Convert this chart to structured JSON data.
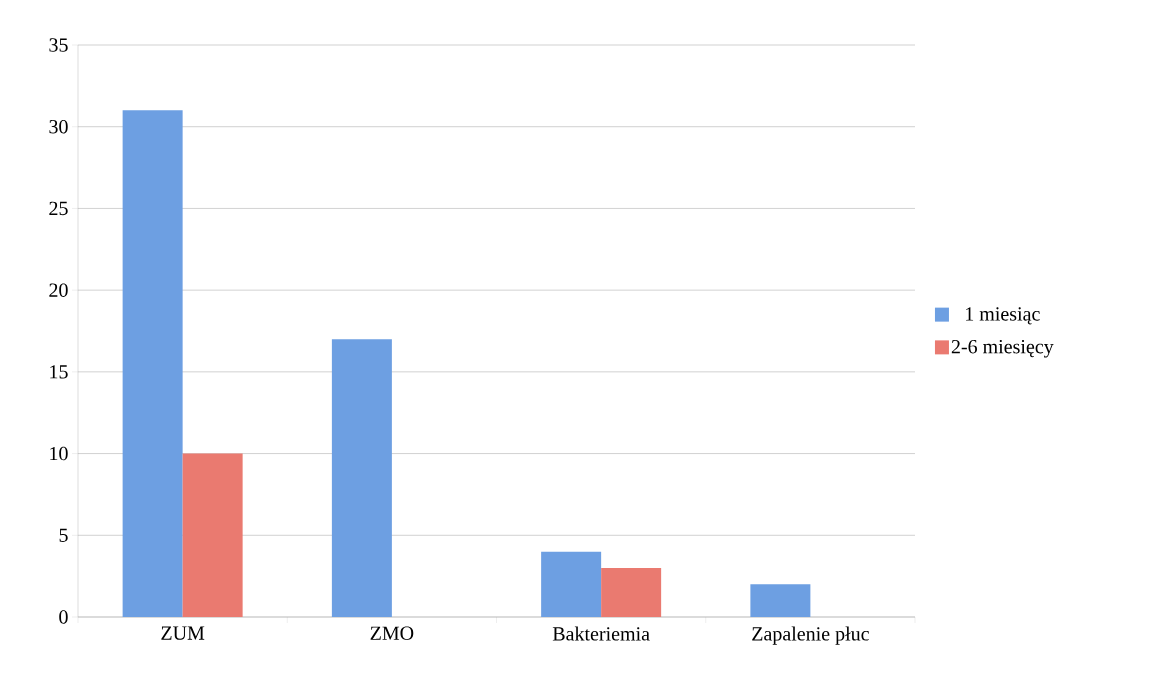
{
  "chart_data": {
    "type": "bar",
    "categories": [
      "ZUM",
      "ZMO",
      "Bakteriemia",
      "Zapalenie płuc"
    ],
    "series": [
      {
        "name": "1 miesiąc",
        "color": "#6d9fe2",
        "values": [
          31,
          17,
          4,
          2
        ]
      },
      {
        "name": "2-6 miesięcy",
        "color": "#ea7a70",
        "values": [
          10,
          0,
          3,
          0
        ]
      }
    ],
    "ylim": [
      0,
      35
    ],
    "yticks": [
      0,
      5,
      10,
      15,
      20,
      25,
      30,
      35
    ],
    "grid": "y",
    "legend": "right"
  }
}
